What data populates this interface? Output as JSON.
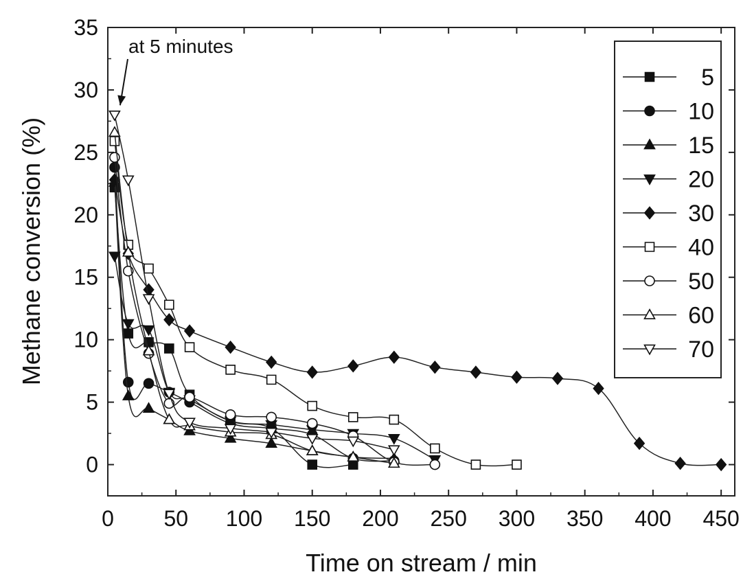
{
  "chart_data": {
    "type": "line",
    "title": "",
    "xlabel": "Time on stream / min",
    "ylabel": "Methane conversion (%)",
    "xlim": [
      0,
      460
    ],
    "ylim": [
      -2.5,
      35
    ],
    "xticks": [
      0,
      50,
      100,
      150,
      200,
      250,
      300,
      350,
      400,
      450
    ],
    "yticks": [
      0,
      5,
      10,
      15,
      20,
      25,
      30,
      35
    ],
    "grid": false,
    "legend_position": "top-right",
    "annotation": {
      "text": "at 5 minutes",
      "x": 5,
      "y": 28
    },
    "series": [
      {
        "name": "5",
        "marker": "square-filled",
        "x": [
          5,
          15,
          30,
          45,
          60,
          90,
          120,
          150,
          180
        ],
        "y": [
          22.2,
          10.5,
          9.8,
          9.3,
          5.6,
          3.5,
          2.9,
          0.0,
          0.0
        ]
      },
      {
        "name": "10",
        "marker": "circle-filled",
        "x": [
          5,
          15,
          30,
          45,
          60,
          90,
          120,
          150,
          180,
          210
        ],
        "y": [
          23.8,
          6.6,
          6.5,
          5.8,
          5.0,
          3.3,
          2.9,
          2.4,
          0.5,
          0.3
        ]
      },
      {
        "name": "15",
        "marker": "triangle-up-filled",
        "x": [
          5,
          15,
          30,
          45,
          60,
          90,
          120,
          150,
          180,
          210
        ],
        "y": [
          22.6,
          5.5,
          4.5,
          3.6,
          2.7,
          2.1,
          1.7,
          1.1,
          0.6,
          0.5
        ]
      },
      {
        "name": "20",
        "marker": "triangle-down-filled",
        "x": [
          5,
          15,
          30,
          45,
          60,
          90,
          120,
          150,
          180,
          210,
          240
        ],
        "y": [
          16.7,
          11.3,
          10.8,
          5.8,
          5.2,
          3.5,
          3.2,
          2.8,
          2.5,
          2.1,
          0.4
        ]
      },
      {
        "name": "30",
        "marker": "diamond-filled",
        "x": [
          5,
          15,
          30,
          45,
          60,
          90,
          120,
          150,
          180,
          210,
          240,
          270,
          300,
          330,
          360,
          390,
          420,
          450
        ],
        "y": [
          22.8,
          16.9,
          14.0,
          11.6,
          10.7,
          9.4,
          8.2,
          7.4,
          7.9,
          8.6,
          7.8,
          7.4,
          7.0,
          6.9,
          6.1,
          1.7,
          0.1,
          0.0
        ]
      },
      {
        "name": "40",
        "marker": "square-open",
        "x": [
          5,
          15,
          30,
          45,
          60,
          90,
          120,
          150,
          180,
          210,
          240,
          270,
          300
        ],
        "y": [
          25.9,
          17.6,
          15.7,
          12.8,
          9.4,
          7.6,
          6.8,
          4.7,
          3.8,
          3.6,
          1.3,
          0.0,
          0.0
        ]
      },
      {
        "name": "50",
        "marker": "circle-open",
        "x": [
          5,
          15,
          30,
          45,
          60,
          90,
          120,
          150,
          180,
          210,
          240
        ],
        "y": [
          24.6,
          15.5,
          8.9,
          4.9,
          5.4,
          4.0,
          3.8,
          3.3,
          2.3,
          0.2,
          0.0
        ]
      },
      {
        "name": "60",
        "marker": "triangle-up-open",
        "x": [
          5,
          15,
          30,
          45,
          60,
          90,
          120,
          150,
          180,
          210
        ],
        "y": [
          26.6,
          17.0,
          9.1,
          3.6,
          3.1,
          2.6,
          2.4,
          1.1,
          0.6,
          0.1
        ]
      },
      {
        "name": "70",
        "marker": "triangle-down-open",
        "x": [
          5,
          15,
          30,
          45,
          60,
          90,
          120,
          150,
          180,
          210
        ],
        "y": [
          28.0,
          22.8,
          13.3,
          5.7,
          3.4,
          2.9,
          2.6,
          2.1,
          1.9,
          1.2
        ]
      }
    ]
  }
}
